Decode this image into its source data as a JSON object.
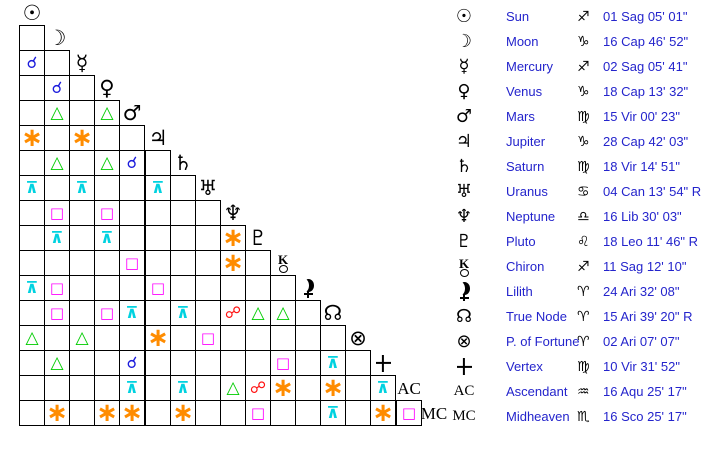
{
  "colors": {
    "text_blue": "#2424cc",
    "grid_line": "#000000",
    "background": "#ffffff"
  },
  "aspect_types": {
    "conjunction": {
      "symbol": "☌",
      "color": "#1b1bdc",
      "angle": "0°"
    },
    "sextile": {
      "symbol": "∗",
      "color": "#ff8c00",
      "angle": "60°"
    },
    "square": {
      "symbol": "□",
      "color": "#ff00ff",
      "angle": "90°"
    },
    "trine": {
      "symbol": "△",
      "color": "#00cc00",
      "angle": "120°"
    },
    "quincunx": {
      "symbol": "⊼",
      "color": "#00d2e0",
      "angle": "150°"
    },
    "opposition": {
      "symbol": "☍",
      "color": "#ff1111",
      "angle": "180°"
    }
  },
  "planets": [
    {
      "id": "sun",
      "name": "Sun",
      "glyph": "☉",
      "glyph_kind": "char",
      "sign_glyph": "♐",
      "sign": "Sagittarius",
      "position": "01 Sag 05' 01\""
    },
    {
      "id": "moon",
      "name": "Moon",
      "glyph": "☽",
      "glyph_kind": "char",
      "sign_glyph": "♑",
      "sign": "Capricorn",
      "position": "16 Cap 46' 52\""
    },
    {
      "id": "mercury",
      "name": "Mercury",
      "glyph": "☿",
      "glyph_kind": "char",
      "sign_glyph": "♐",
      "sign": "Sagittarius",
      "position": "02 Sag 05' 41\""
    },
    {
      "id": "venus",
      "name": "Venus",
      "glyph": "♀",
      "glyph_kind": "char",
      "sign_glyph": "♑",
      "sign": "Capricorn",
      "position": "18 Cap 13' 32\""
    },
    {
      "id": "mars",
      "name": "Mars",
      "glyph": "♂",
      "glyph_kind": "char",
      "sign_glyph": "♍",
      "sign": "Virgo",
      "position": "15 Vir 00' 23\""
    },
    {
      "id": "jupiter",
      "name": "Jupiter",
      "glyph": "♃",
      "glyph_kind": "char",
      "sign_glyph": "♑",
      "sign": "Capricorn",
      "position": "28 Cap 42' 03\""
    },
    {
      "id": "saturn",
      "name": "Saturn",
      "glyph": "♄",
      "glyph_kind": "char",
      "sign_glyph": "♍",
      "sign": "Virgo",
      "position": "18 Vir 14' 51\""
    },
    {
      "id": "uranus",
      "name": "Uranus",
      "glyph": "♅",
      "glyph_kind": "char",
      "sign_glyph": "♋",
      "sign": "Cancer",
      "position": "04 Can 13' 54\" R"
    },
    {
      "id": "neptune",
      "name": "Neptune",
      "glyph": "♆",
      "glyph_kind": "char",
      "sign_glyph": "♎",
      "sign": "Libra",
      "position": "16 Lib 30' 03\""
    },
    {
      "id": "pluto",
      "name": "Pluto",
      "glyph": "♇",
      "glyph_kind": "char",
      "sign_glyph": "♌",
      "sign": "Leo",
      "position": "18 Leo 11' 46\" R"
    },
    {
      "id": "chiron",
      "name": "Chiron",
      "glyph": "⚷",
      "glyph_kind": "chiron",
      "sign_glyph": "♐",
      "sign": "Sagittarius",
      "position": "11 Sag 12' 10\""
    },
    {
      "id": "lilith",
      "name": "Lilith",
      "glyph": "⚸",
      "glyph_kind": "lilith",
      "sign_glyph": "♈",
      "sign": "Aries",
      "position": "24 Ari 32' 08\""
    },
    {
      "id": "truenode",
      "name": "True Node",
      "glyph": "☊",
      "glyph_kind": "char",
      "sign_glyph": "♈",
      "sign": "Aries",
      "position": "15 Ari 39' 20\" R"
    },
    {
      "id": "fortune",
      "name": "P. of Fortune",
      "glyph": "⊗",
      "glyph_kind": "char",
      "sign_glyph": "♈",
      "sign": "Aries",
      "position": "02 Ari 07' 07\""
    },
    {
      "id": "vertex",
      "name": "Vertex",
      "glyph": "✛",
      "glyph_kind": "vertex",
      "sign_glyph": "♍",
      "sign": "Virgo",
      "position": "10 Vir 31' 52\""
    },
    {
      "id": "ascendant",
      "name": "Ascendant",
      "glyph": "AC",
      "glyph_kind": "text",
      "sign_glyph": "♒",
      "sign": "Aquarius",
      "position": "16 Aqu 25' 17\""
    },
    {
      "id": "midheaven",
      "name": "Midheaven",
      "glyph": "MC",
      "glyph_kind": "text",
      "sign_glyph": "♏",
      "sign": "Scorpio",
      "position": "16 Sco 25' 17\""
    }
  ],
  "grid": {
    "rows": 17,
    "aspects": [
      {
        "row": 2,
        "col": 0,
        "type": "conjunction"
      },
      {
        "row": 3,
        "col": 1,
        "type": "conjunction"
      },
      {
        "row": 4,
        "col": 1,
        "type": "trine"
      },
      {
        "row": 4,
        "col": 3,
        "type": "trine"
      },
      {
        "row": 5,
        "col": 0,
        "type": "sextile"
      },
      {
        "row": 5,
        "col": 2,
        "type": "sextile"
      },
      {
        "row": 6,
        "col": 1,
        "type": "trine"
      },
      {
        "row": 6,
        "col": 3,
        "type": "trine"
      },
      {
        "row": 6,
        "col": 4,
        "type": "conjunction"
      },
      {
        "row": 7,
        "col": 0,
        "type": "quincunx"
      },
      {
        "row": 7,
        "col": 2,
        "type": "quincunx"
      },
      {
        "row": 7,
        "col": 5,
        "type": "quincunx"
      },
      {
        "row": 8,
        "col": 1,
        "type": "square"
      },
      {
        "row": 8,
        "col": 3,
        "type": "square"
      },
      {
        "row": 9,
        "col": 1,
        "type": "quincunx"
      },
      {
        "row": 9,
        "col": 3,
        "type": "quincunx"
      },
      {
        "row": 9,
        "col": 8,
        "type": "sextile"
      },
      {
        "row": 10,
        "col": 4,
        "type": "square"
      },
      {
        "row": 10,
        "col": 8,
        "type": "sextile"
      },
      {
        "row": 11,
        "col": 0,
        "type": "quincunx"
      },
      {
        "row": 11,
        "col": 1,
        "type": "square"
      },
      {
        "row": 11,
        "col": 5,
        "type": "square"
      },
      {
        "row": 12,
        "col": 1,
        "type": "square"
      },
      {
        "row": 12,
        "col": 3,
        "type": "square"
      },
      {
        "row": 12,
        "col": 4,
        "type": "quincunx"
      },
      {
        "row": 12,
        "col": 6,
        "type": "quincunx"
      },
      {
        "row": 12,
        "col": 8,
        "type": "opposition"
      },
      {
        "row": 12,
        "col": 9,
        "type": "trine"
      },
      {
        "row": 12,
        "col": 10,
        "type": "trine"
      },
      {
        "row": 13,
        "col": 0,
        "type": "trine"
      },
      {
        "row": 13,
        "col": 2,
        "type": "trine"
      },
      {
        "row": 13,
        "col": 5,
        "type": "sextile"
      },
      {
        "row": 13,
        "col": 7,
        "type": "square"
      },
      {
        "row": 14,
        "col": 1,
        "type": "trine"
      },
      {
        "row": 14,
        "col": 4,
        "type": "conjunction"
      },
      {
        "row": 14,
        "col": 10,
        "type": "square"
      },
      {
        "row": 14,
        "col": 12,
        "type": "quincunx"
      },
      {
        "row": 15,
        "col": 4,
        "type": "quincunx"
      },
      {
        "row": 15,
        "col": 6,
        "type": "quincunx"
      },
      {
        "row": 15,
        "col": 8,
        "type": "trine"
      },
      {
        "row": 15,
        "col": 9,
        "type": "opposition"
      },
      {
        "row": 15,
        "col": 10,
        "type": "sextile"
      },
      {
        "row": 15,
        "col": 12,
        "type": "sextile"
      },
      {
        "row": 15,
        "col": 14,
        "type": "quincunx"
      },
      {
        "row": 16,
        "col": 1,
        "type": "sextile"
      },
      {
        "row": 16,
        "col": 3,
        "type": "sextile"
      },
      {
        "row": 16,
        "col": 4,
        "type": "sextile"
      },
      {
        "row": 16,
        "col": 6,
        "type": "sextile"
      },
      {
        "row": 16,
        "col": 9,
        "type": "square"
      },
      {
        "row": 16,
        "col": 12,
        "type": "quincunx"
      },
      {
        "row": 16,
        "col": 14,
        "type": "sextile"
      },
      {
        "row": 16,
        "col": 15,
        "type": "square"
      }
    ]
  },
  "chart_data": {
    "type": "table",
    "title": "Natal aspect grid (aspectarian) with planet positions",
    "positions": [
      [
        "Sun",
        "01 Sag 05' 01\""
      ],
      [
        "Moon",
        "16 Cap 46' 52\""
      ],
      [
        "Mercury",
        "02 Sag 05' 41\""
      ],
      [
        "Venus",
        "18 Cap 13' 32\""
      ],
      [
        "Mars",
        "15 Vir 00' 23\""
      ],
      [
        "Jupiter",
        "28 Cap 42' 03\""
      ],
      [
        "Saturn",
        "18 Vir 14' 51\""
      ],
      [
        "Uranus",
        "04 Can 13' 54\" R"
      ],
      [
        "Neptune",
        "16 Lib 30' 03\""
      ],
      [
        "Pluto",
        "18 Leo 11' 46\" R"
      ],
      [
        "Chiron",
        "11 Sag 12' 10\""
      ],
      [
        "Lilith",
        "24 Ari 32' 08\""
      ],
      [
        "True Node",
        "15 Ari 39' 20\" R"
      ],
      [
        "P. of Fortune",
        "02 Ari 07' 07\""
      ],
      [
        "Vertex",
        "10 Vir 31' 52\""
      ],
      [
        "Ascendant",
        "16 Aqu 25' 17\""
      ],
      [
        "Midheaven",
        "16 Sco 25' 17\""
      ]
    ],
    "aspects": [
      "Mercury conjunction Sun",
      "Venus conjunction Moon",
      "Mars trine Moon",
      "Mars trine Venus",
      "Jupiter sextile Sun",
      "Jupiter sextile Mercury",
      "Saturn trine Moon",
      "Saturn trine Venus",
      "Saturn conjunction Mars",
      "Uranus quincunx Sun",
      "Uranus quincunx Mercury",
      "Uranus quincunx Jupiter",
      "Neptune square Moon",
      "Neptune square Venus",
      "Pluto quincunx Moon",
      "Pluto quincunx Venus",
      "Pluto sextile Neptune",
      "Chiron square Mars",
      "Chiron sextile Neptune",
      "Lilith quincunx Sun",
      "Lilith square Moon",
      "Lilith square Jupiter",
      "True Node square Moon",
      "True Node square Venus",
      "True Node quincunx Mars",
      "True Node quincunx Saturn",
      "True Node opposition Neptune",
      "True Node trine Pluto",
      "True Node trine Chiron",
      "P. of Fortune trine Sun",
      "P. of Fortune trine Mercury",
      "P. of Fortune sextile Jupiter",
      "P. of Fortune square Uranus",
      "Vertex trine Moon",
      "Vertex conjunction Mars",
      "Vertex square Chiron",
      "Vertex quincunx True Node",
      "Ascendant quincunx Mars",
      "Ascendant quincunx Saturn",
      "Ascendant trine Neptune",
      "Ascendant opposition Pluto",
      "Ascendant sextile Chiron",
      "Ascendant sextile True Node",
      "Ascendant quincunx Vertex",
      "Midheaven sextile Moon",
      "Midheaven sextile Venus",
      "Midheaven sextile Mars",
      "Midheaven sextile Saturn",
      "Midheaven square Pluto",
      "Midheaven quincunx True Node",
      "Midheaven sextile Vertex",
      "Midheaven square Ascendant"
    ]
  }
}
